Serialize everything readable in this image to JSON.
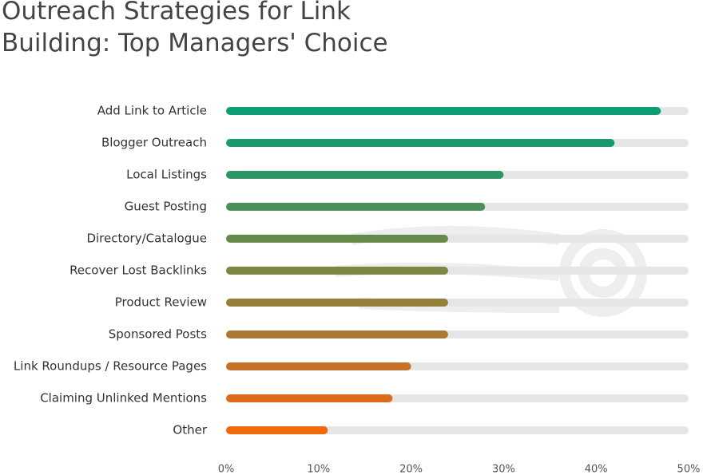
{
  "chart_data": {
    "type": "bar",
    "orientation": "horizontal",
    "title": "Outreach Strategies for Link Building: Top Managers' Choice",
    "categories": [
      "Add Link to Article",
      "Blogger Outreach",
      "Local Listings",
      "Guest Posting",
      "Directory/Catalogue",
      "Recover Lost Backlinks",
      "Product Review",
      "Sponsored Posts",
      "Link Roundups / Resource Pages",
      "Claiming Unlinked Mentions",
      "Other"
    ],
    "values": [
      47,
      42,
      30,
      28,
      24,
      24,
      24,
      24,
      20,
      18,
      11
    ],
    "colors": [
      "#0f9e74",
      "#1c9a6c",
      "#2e9663",
      "#4a8e58",
      "#678a4c",
      "#7f8543",
      "#94803b",
      "#aa7a32",
      "#c4722a",
      "#da6c1b",
      "#f0690b"
    ],
    "track_color": "#e6e6e6",
    "xlim": [
      0,
      50
    ],
    "xticks": [
      {
        "value": 0,
        "label": "0%"
      },
      {
        "value": 10,
        "label": "10%"
      },
      {
        "value": 20,
        "label": "20%"
      },
      {
        "value": 30,
        "label": "30%"
      },
      {
        "value": 40,
        "label": "40%"
      },
      {
        "value": 50,
        "label": "50%"
      }
    ]
  }
}
